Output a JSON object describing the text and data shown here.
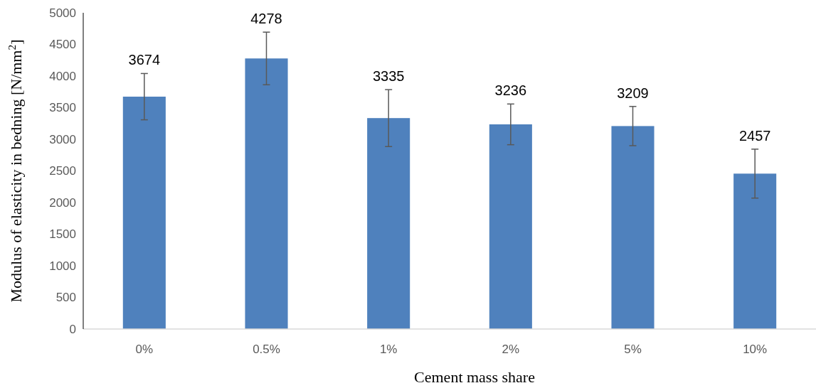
{
  "chart_data": {
    "type": "bar",
    "xlabel": "Cement mass share",
    "ylabel": "Modulus of elasticity in bedning [N/mm$^{2}$]",
    "categories": [
      "0%",
      "0.5%",
      "1%",
      "2%",
      "5%",
      "10%"
    ],
    "values": [
      3674,
      4278,
      3335,
      3236,
      3209,
      2457
    ],
    "errors": [
      366,
      416,
      450,
      322,
      310,
      387
    ],
    "color": "#4f81bd",
    "data_labels": true,
    "ylim": [
      0,
      5000
    ],
    "yticks": [
      0,
      500,
      1000,
      1500,
      2000,
      2500,
      3000,
      3500,
      4000,
      4500,
      5000
    ],
    "grid": false
  }
}
